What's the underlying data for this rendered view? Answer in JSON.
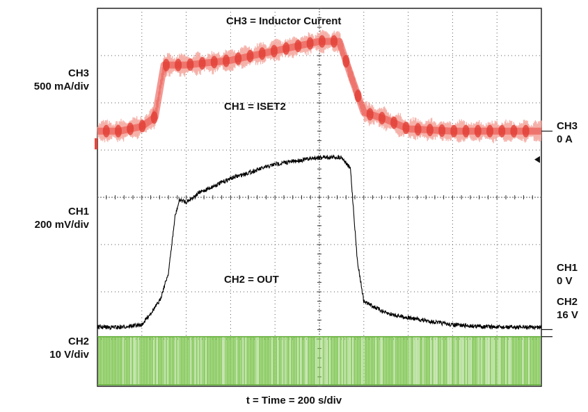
{
  "chart_data": {
    "type": "line",
    "xlabel": "t = Time = 200   s/div",
    "grid": true,
    "channels": [
      {
        "id": "CH1",
        "name": "CH1 = ISET2",
        "scale": "200 mV/div",
        "zero_label": "0 V",
        "color": "#000000",
        "t_div": [
          0,
          0.5,
          1.0,
          1.4,
          1.6,
          1.75,
          1.85,
          2.0,
          2.3,
          3.0,
          4.0,
          5.0,
          5.5,
          5.7,
          5.85,
          6.0,
          6.5,
          7.0,
          8.0,
          9.0,
          10.0
        ],
        "v_div": [
          0.05,
          0.05,
          0.1,
          0.6,
          1.2,
          2.4,
          2.75,
          2.7,
          2.9,
          3.2,
          3.5,
          3.65,
          3.65,
          3.4,
          1.5,
          0.6,
          0.35,
          0.25,
          0.1,
          0.05,
          0.05
        ]
      },
      {
        "id": "CH2",
        "name": "CH2 = OUT",
        "scale": "10 V/div",
        "zero_label": "16 V",
        "color": "#7ac142",
        "description_values": {
          "low_div": 0,
          "high_div": 2.0
        }
      },
      {
        "id": "CH3",
        "name": "CH3 = Inductor Current",
        "scale": "500 mA/div",
        "zero_label": "0 A",
        "color": "#e8453c",
        "t_div": [
          0,
          0.5,
          1.0,
          1.3,
          1.5,
          2.0,
          3.0,
          4.0,
          5.0,
          5.45,
          5.7,
          6.0,
          6.5,
          7.0,
          8.0,
          9.0,
          10.0
        ],
        "v_div": [
          0.0,
          0.0,
          0.1,
          0.3,
          1.4,
          1.4,
          1.5,
          1.7,
          1.9,
          1.9,
          1.2,
          0.4,
          0.25,
          0.05,
          0.0,
          0.0,
          0.0
        ]
      }
    ],
    "x_range": [
      0,
      10
    ],
    "y_divisions": 8
  }
}
